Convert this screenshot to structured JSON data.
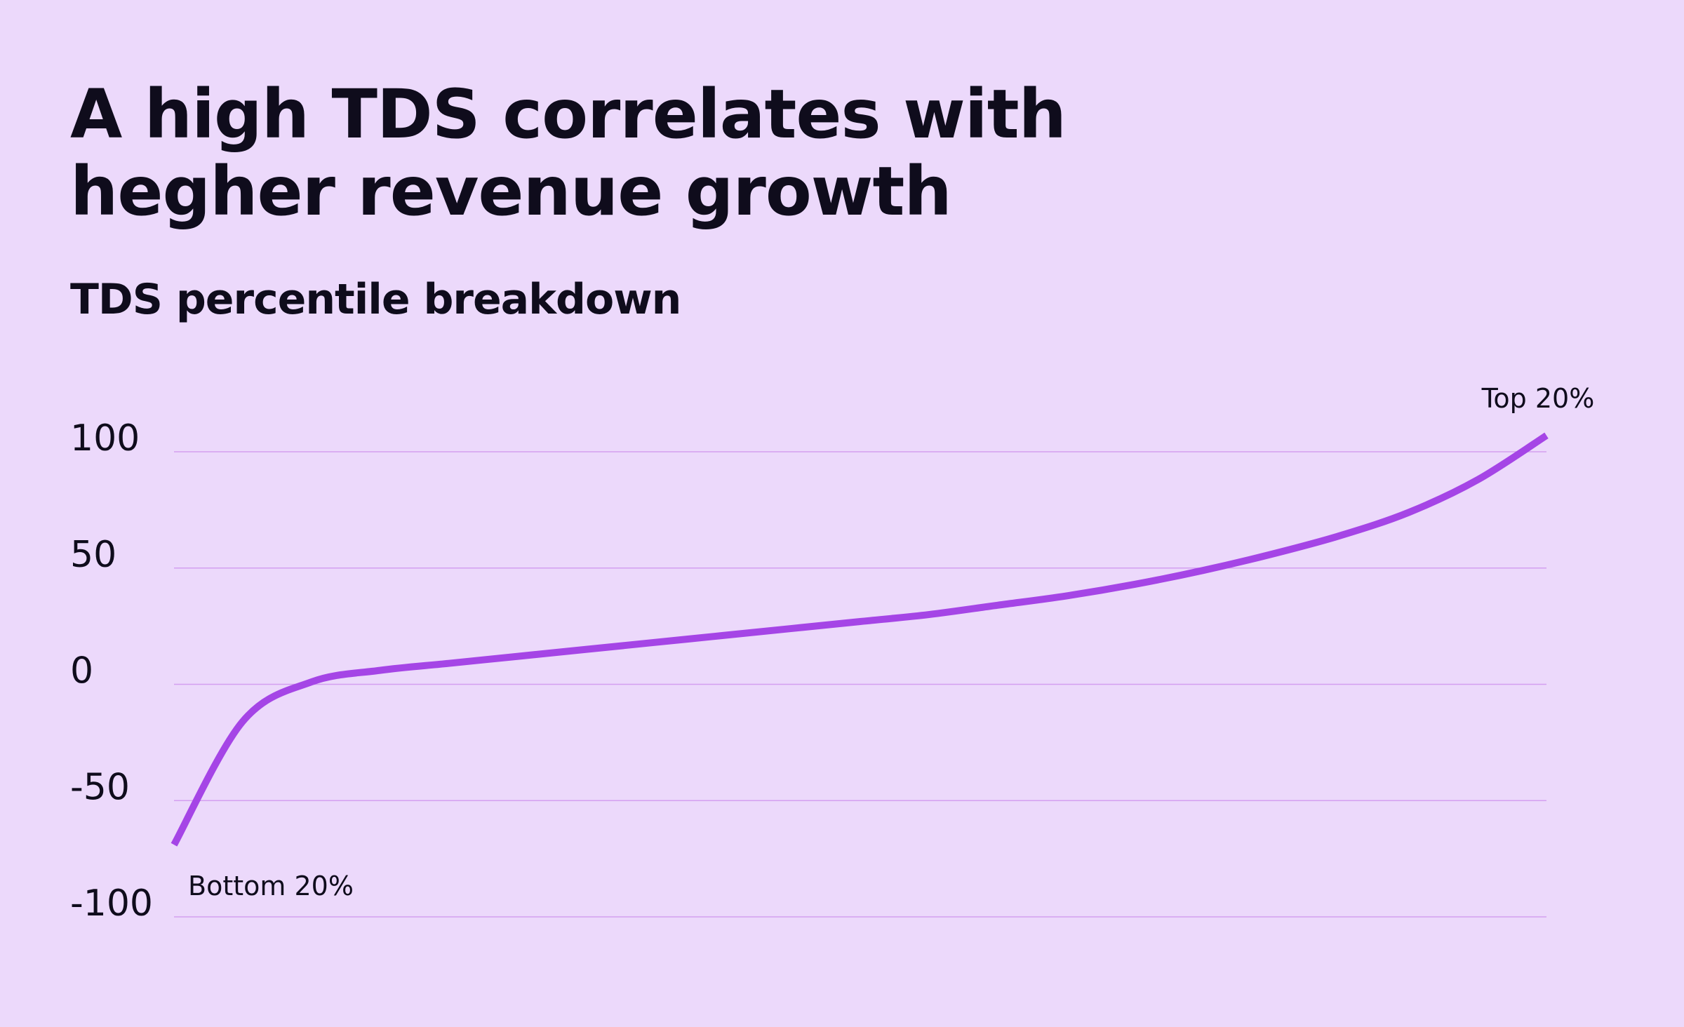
{
  "chart_data": {
    "type": "line",
    "title": [
      "A high TDS correlates with",
      "hegher revenue growth"
    ],
    "subtitle": "TDS percentile breakdown",
    "categories": [
      null,
      null,
      null,
      null,
      null,
      null,
      null,
      null,
      null,
      null,
      null,
      null,
      null,
      null,
      null,
      null,
      null,
      null,
      null,
      null,
      null
    ],
    "series": [
      {
        "color": "#a545e6",
        "values": [
          -69,
          -16,
          1,
          6,
          9,
          12,
          15,
          18,
          21,
          24,
          27,
          30,
          34,
          38,
          43,
          49,
          56,
          64,
          74,
          88,
          107
        ]
      }
    ],
    "annotations": [
      "Bottom 20%",
      "Top 20%"
    ],
    "ylim": [
      -100,
      100
    ],
    "yticks": [
      -100,
      -50,
      0,
      50,
      100
    ],
    "grid": true,
    "grid_color": "#d39ff0"
  }
}
